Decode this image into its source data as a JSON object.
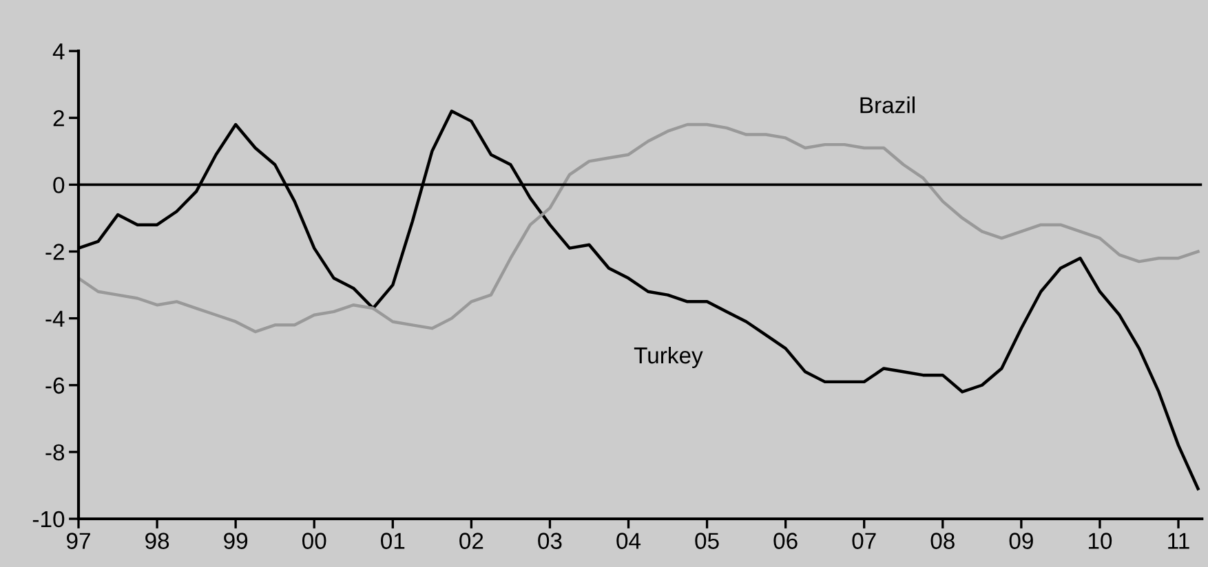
{
  "chart_data": {
    "type": "line",
    "x": [
      1997,
      1997.25,
      1997.5,
      1997.75,
      1998,
      1998.25,
      1998.5,
      1998.75,
      1999,
      1999.25,
      1999.5,
      1999.75,
      2000,
      2000.25,
      2000.5,
      2000.75,
      2001,
      2001.25,
      2001.5,
      2001.75,
      2002,
      2002.25,
      2002.5,
      2002.75,
      2003,
      2003.25,
      2003.5,
      2003.75,
      2004,
      2004.25,
      2004.5,
      2004.75,
      2005,
      2005.25,
      2005.5,
      2005.75,
      2006,
      2006.25,
      2006.5,
      2006.75,
      2007,
      2007.25,
      2007.5,
      2007.75,
      2008,
      2008.25,
      2008.5,
      2008.75,
      2009,
      2009.25,
      2009.5,
      2009.75,
      2010,
      2010.25,
      2010.5,
      2010.75,
      2011,
      2011.25
    ],
    "series": [
      {
        "name": "Turkey",
        "color": "#000000",
        "values": [
          -1.9,
          -1.7,
          -0.9,
          -1.2,
          -1.2,
          -0.8,
          -0.2,
          0.9,
          1.8,
          1.1,
          0.6,
          -0.5,
          -1.9,
          -2.8,
          -3.1,
          -3.7,
          -3.0,
          -1.1,
          1.0,
          2.2,
          1.9,
          0.9,
          0.6,
          -0.4,
          -1.2,
          -1.9,
          -1.8,
          -2.5,
          -2.8,
          -3.2,
          -3.3,
          -3.5,
          -3.5,
          -3.8,
          -4.1,
          -4.5,
          -4.9,
          -5.6,
          -5.9,
          -5.9,
          -5.9,
          -5.5,
          -5.6,
          -5.7,
          -5.7,
          -6.2,
          -6.0,
          -5.5,
          -4.3,
          -3.2,
          -2.5,
          -2.2,
          -3.2,
          -3.9,
          -4.9,
          -6.2,
          -7.8,
          -9.1
        ]
      },
      {
        "name": "Brazil",
        "color": "#999999",
        "values": [
          -2.8,
          -3.2,
          -3.3,
          -3.4,
          -3.6,
          -3.5,
          -3.7,
          -3.9,
          -4.1,
          -4.4,
          -4.2,
          -4.2,
          -3.9,
          -3.8,
          -3.6,
          -3.7,
          -4.1,
          -4.2,
          -4.3,
          -4.0,
          -3.5,
          -3.3,
          -2.2,
          -1.2,
          -0.7,
          0.3,
          0.7,
          0.8,
          0.9,
          1.3,
          1.6,
          1.8,
          1.8,
          1.7,
          1.5,
          1.5,
          1.4,
          1.1,
          1.2,
          1.2,
          1.1,
          1.1,
          0.6,
          0.2,
          -0.5,
          -1.0,
          -1.4,
          -1.6,
          -1.4,
          -1.2,
          -1.2,
          -1.4,
          -1.6,
          -2.1,
          -2.3,
          -2.2,
          -2.2,
          -2.0
        ]
      }
    ],
    "ref_lines": [
      {
        "axis": "y",
        "value": 0,
        "color": "#000000"
      }
    ],
    "xlim": [
      1997,
      2011.3
    ],
    "xticks": [
      {
        "value": 1997,
        "label": "97"
      },
      {
        "value": 1998,
        "label": "98"
      },
      {
        "value": 1999,
        "label": "99"
      },
      {
        "value": 2000,
        "label": "00"
      },
      {
        "value": 2001,
        "label": "01"
      },
      {
        "value": 2002,
        "label": "02"
      },
      {
        "value": 2003,
        "label": "03"
      },
      {
        "value": 2004,
        "label": "04"
      },
      {
        "value": 2005,
        "label": "05"
      },
      {
        "value": 2006,
        "label": "06"
      },
      {
        "value": 2007,
        "label": "07"
      },
      {
        "value": 2008,
        "label": "08"
      },
      {
        "value": 2009,
        "label": "09"
      },
      {
        "value": 2010,
        "label": "10"
      },
      {
        "value": 2011,
        "label": "11"
      }
    ],
    "ylim": [
      -10,
      4
    ],
    "yticks": [
      -10,
      -8,
      -6,
      -4,
      -2,
      0,
      2,
      4
    ],
    "grid": false,
    "legend": false
  }
}
